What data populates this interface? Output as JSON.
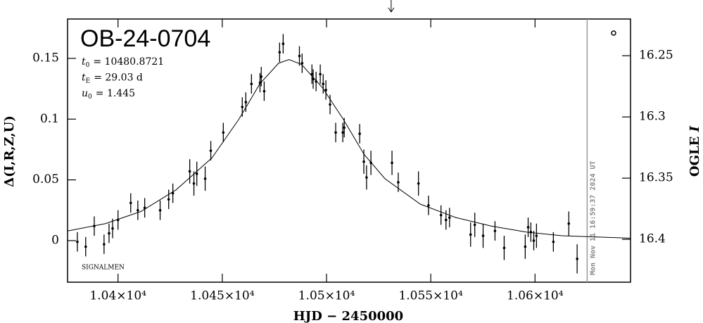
{
  "chart_data": {
    "type": "scatter",
    "title": "OB-24-0704",
    "annotations": {
      "params": [
        {
          "symbol": "t",
          "sub": "0",
          "text": "= 10480.8721"
        },
        {
          "symbol": "t",
          "sub": "E",
          "text": "= 29.03 d"
        },
        {
          "symbol": "u",
          "sub": "0",
          "text": "= 1.445"
        }
      ],
      "credit": "SIGNALMEN",
      "timestamp": "Mon Nov 11 16:59:37 2024 UT"
    },
    "x_label": "HJD − 2450000",
    "y_label": "Δ(I,R,Z,U)",
    "y2_label": {
      "text": "OGLE",
      "variable": "I"
    },
    "color": "#000000",
    "x": [
      10380.5,
      10384.5,
      10388.6,
      10393.3,
      10395.7,
      10397.4,
      10400.0,
      10406.1,
      10409.5,
      10412.8,
      10420.2,
      10424.3,
      10426.3,
      10434.4,
      10436.4,
      10437.8,
      10441.8,
      10444.5,
      10450.5,
      10459.6,
      10461.3,
      10464.0,
      10468.1,
      10468.7,
      10470.1,
      10477.5,
      10479.2,
      10487.0,
      10488.3,
      10493.0,
      10493.6,
      10495.0,
      10497.0,
      10498.4,
      10499.7,
      10501.7,
      10504.4,
      10507.8,
      10508.5,
      10515.9,
      10517.9,
      10519.2,
      10521.3,
      10531.4,
      10534.4,
      10544.1,
      10548.9,
      10554.9,
      10557.3,
      10559.0,
      10569.1,
      10571.1,
      10575.1,
      10580.8,
      10585.2,
      10595.3,
      10596.7,
      10598.0,
      10599.4,
      10600.7,
      10608.8,
      10616.2,
      10620.2
    ],
    "values": [
      -0.001,
      -0.005,
      0.012,
      -0.003,
      0.006,
      0.01,
      0.017,
      0.031,
      0.025,
      0.027,
      0.025,
      0.034,
      0.039,
      0.057,
      0.047,
      0.055,
      0.051,
      0.074,
      0.089,
      0.11,
      0.114,
      0.129,
      0.13,
      0.135,
      0.123,
      0.155,
      0.162,
      0.152,
      0.146,
      0.137,
      0.133,
      0.131,
      0.137,
      0.129,
      0.124,
      0.112,
      0.089,
      0.089,
      0.093,
      0.088,
      0.065,
      0.052,
      0.064,
      0.064,
      0.048,
      0.047,
      0.029,
      0.021,
      0.017,
      0.019,
      0.005,
      0.013,
      0.004,
      0.008,
      -0.006,
      -0.005,
      0.011,
      0.007,
      0.0,
      0.004,
      -0.001,
      0.014,
      -0.015
    ],
    "errors": [
      0.008,
      0.008,
      0.008,
      0.008,
      0.008,
      0.008,
      0.008,
      0.008,
      0.008,
      0.008,
      0.008,
      0.008,
      0.008,
      0.01,
      0.01,
      0.01,
      0.01,
      0.008,
      0.008,
      0.008,
      0.008,
      0.008,
      0.008,
      0.008,
      0.008,
      0.008,
      0.008,
      0.008,
      0.008,
      0.008,
      0.008,
      0.008,
      0.008,
      0.008,
      0.008,
      0.008,
      0.008,
      0.008,
      0.008,
      0.008,
      0.01,
      0.01,
      0.01,
      0.01,
      0.008,
      0.01,
      0.008,
      0.008,
      0.008,
      0.008,
      0.01,
      0.01,
      0.01,
      0.008,
      0.01,
      0.01,
      0.008,
      0.008,
      0.008,
      0.01,
      0.008,
      0.01,
      0.012
    ],
    "model": {
      "x": [
        10376,
        10394,
        10411,
        10428,
        10445,
        10458,
        10468,
        10477,
        10482,
        10488,
        10498,
        10508,
        10518,
        10528,
        10545,
        10562,
        10579,
        10596,
        10613,
        10646
      ],
      "values": [
        0.008,
        0.014,
        0.024,
        0.042,
        0.068,
        0.1,
        0.129,
        0.146,
        0.149,
        0.145,
        0.126,
        0.1,
        0.071,
        0.051,
        0.03,
        0.019,
        0.012,
        0.007,
        0.004,
        0.002
      ]
    },
    "now_x": 10625,
    "arrow_x": 10531,
    "xlim": [
      10375.8,
      10645.8
    ],
    "ylim": [
      -0.0342,
      0.1824
    ],
    "y2lim": [
      16.435,
      16.22
    ],
    "xticks": [
      {
        "value": 10400,
        "label": "1.04×10⁴"
      },
      {
        "value": 10450,
        "label": "1.045×10⁴"
      },
      {
        "value": 10500,
        "label": "1.05×10⁴"
      },
      {
        "value": 10550,
        "label": "1.055×10⁴"
      },
      {
        "value": 10600,
        "label": "1.06×10⁴"
      }
    ],
    "yticks": [
      0,
      0.05,
      0.1,
      0.15
    ],
    "y2ticks": [
      16.25,
      16.3,
      16.35,
      16.4
    ]
  }
}
